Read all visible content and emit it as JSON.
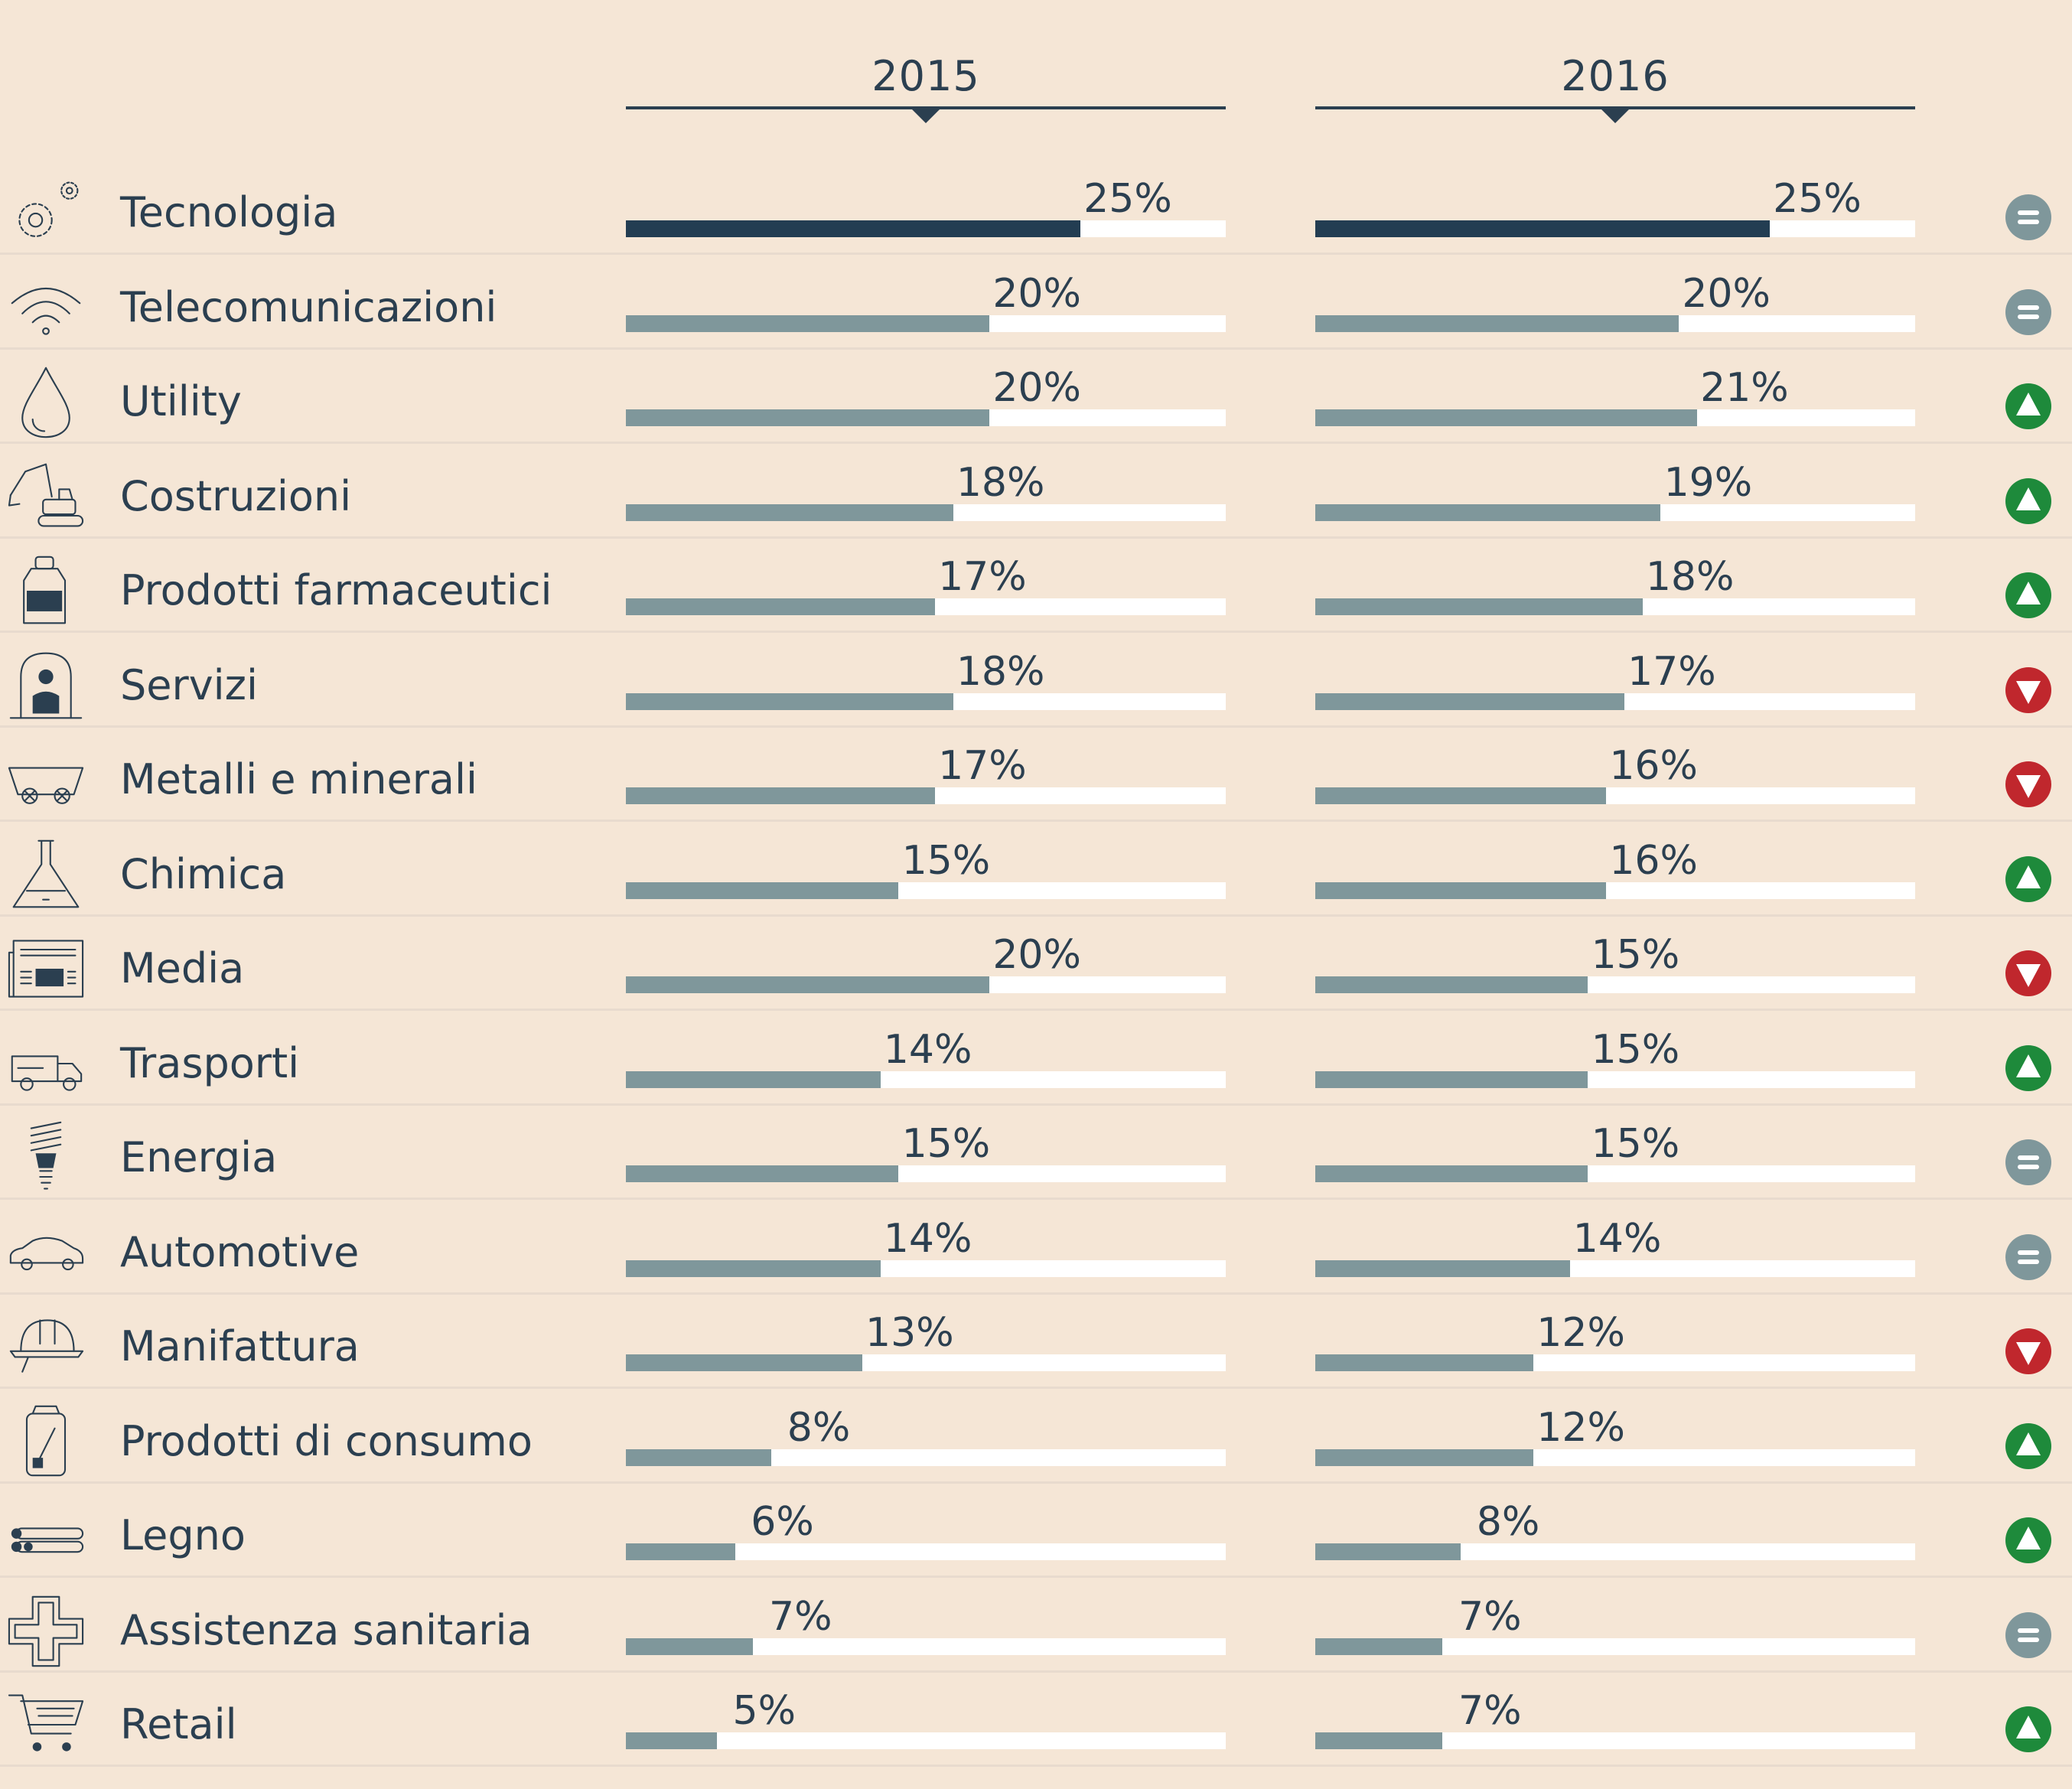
{
  "colors": {
    "background": "#f5e6d6",
    "text": "#2b3f50",
    "bar_highlight": "#233d52",
    "bar": "#7f979b",
    "track": "#ffffff",
    "up": "#1e8a3b",
    "down": "#c0272d",
    "equal": "#7f979b"
  },
  "chart_data": {
    "type": "bar",
    "orientation": "horizontal",
    "title": "",
    "xlabel": "",
    "ylabel": "",
    "xlim": [
      0,
      33
    ],
    "grid": false,
    "series": [
      {
        "name": "2015",
        "values": [
          25,
          20,
          20,
          18,
          17,
          18,
          17,
          15,
          20,
          14,
          15,
          14,
          13,
          8,
          6,
          7,
          5
        ]
      },
      {
        "name": "2016",
        "values": [
          25,
          20,
          21,
          19,
          18,
          17,
          16,
          16,
          15,
          15,
          15,
          14,
          12,
          12,
          8,
          7,
          7
        ]
      }
    ],
    "rows": [
      {
        "label": "Tecnologia",
        "icon": "gear-icon",
        "v2015": 25,
        "t2015": "25%",
        "v2016": 25,
        "t2016": "25%",
        "trend": "equal"
      },
      {
        "label": "Telecomunicazioni",
        "icon": "wifi-icon",
        "v2015": 20,
        "t2015": "20%",
        "v2016": 20,
        "t2016": "20%",
        "trend": "equal"
      },
      {
        "label": "Utility",
        "icon": "water-drop-icon",
        "v2015": 20,
        "t2015": "20%",
        "v2016": 21,
        "t2016": "21%",
        "trend": "up"
      },
      {
        "label": "Costruzioni",
        "icon": "excavator-icon",
        "v2015": 18,
        "t2015": "18%",
        "v2016": 19,
        "t2016": "19%",
        "trend": "up"
      },
      {
        "label": "Prodotti farmaceutici",
        "icon": "medicine-bottle-icon",
        "v2015": 17,
        "t2015": "17%",
        "v2016": 18,
        "t2016": "18%",
        "trend": "up"
      },
      {
        "label": "Servizi",
        "icon": "service-person-icon",
        "v2015": 18,
        "t2015": "18%",
        "v2016": 17,
        "t2016": "17%",
        "trend": "down"
      },
      {
        "label": "Metalli e minerali",
        "icon": "mine-cart-icon",
        "v2015": 17,
        "t2015": "17%",
        "v2016": 16,
        "t2016": "16%",
        "trend": "down"
      },
      {
        "label": "Chimica",
        "icon": "flask-icon",
        "v2015": 15,
        "t2015": "15%",
        "v2016": 16,
        "t2016": "16%",
        "trend": "up"
      },
      {
        "label": "Media",
        "icon": "newspaper-icon",
        "v2015": 20,
        "t2015": "20%",
        "v2016": 15,
        "t2016": "15%",
        "trend": "down"
      },
      {
        "label": "Trasporti",
        "icon": "truck-icon",
        "v2015": 14,
        "t2015": "14%",
        "v2016": 15,
        "t2016": "15%",
        "trend": "up"
      },
      {
        "label": "Energia",
        "icon": "light-bulb-icon",
        "v2015": 15,
        "t2015": "15%",
        "v2016": 15,
        "t2016": "15%",
        "trend": "equal"
      },
      {
        "label": "Automotive",
        "icon": "car-icon",
        "v2015": 14,
        "t2015": "14%",
        "v2016": 14,
        "t2016": "14%",
        "trend": "equal"
      },
      {
        "label": "Manifattura",
        "icon": "hard-hat-icon",
        "v2015": 13,
        "t2015": "13%",
        "v2016": 12,
        "t2016": "12%",
        "trend": "down"
      },
      {
        "label": "Prodotti di consumo",
        "icon": "can-icon",
        "v2015": 8,
        "t2015": "8%",
        "v2016": 12,
        "t2016": "12%",
        "trend": "up"
      },
      {
        "label": "Legno",
        "icon": "logs-icon",
        "v2015": 6,
        "t2015": "6%",
        "v2016": 8,
        "t2016": "8%",
        "trend": "up"
      },
      {
        "label": "Assistenza sanitaria",
        "icon": "medical-cross-icon",
        "v2015": 7,
        "t2015": "7%",
        "v2016": 7,
        "t2016": "7%",
        "trend": "equal"
      },
      {
        "label": "Retail",
        "icon": "shopping-cart-icon",
        "v2015": 5,
        "t2015": "5%",
        "v2016": 7,
        "t2016": "7%",
        "trend": "up"
      }
    ]
  },
  "header": {
    "year_2015": "2015",
    "year_2016": "2016"
  }
}
